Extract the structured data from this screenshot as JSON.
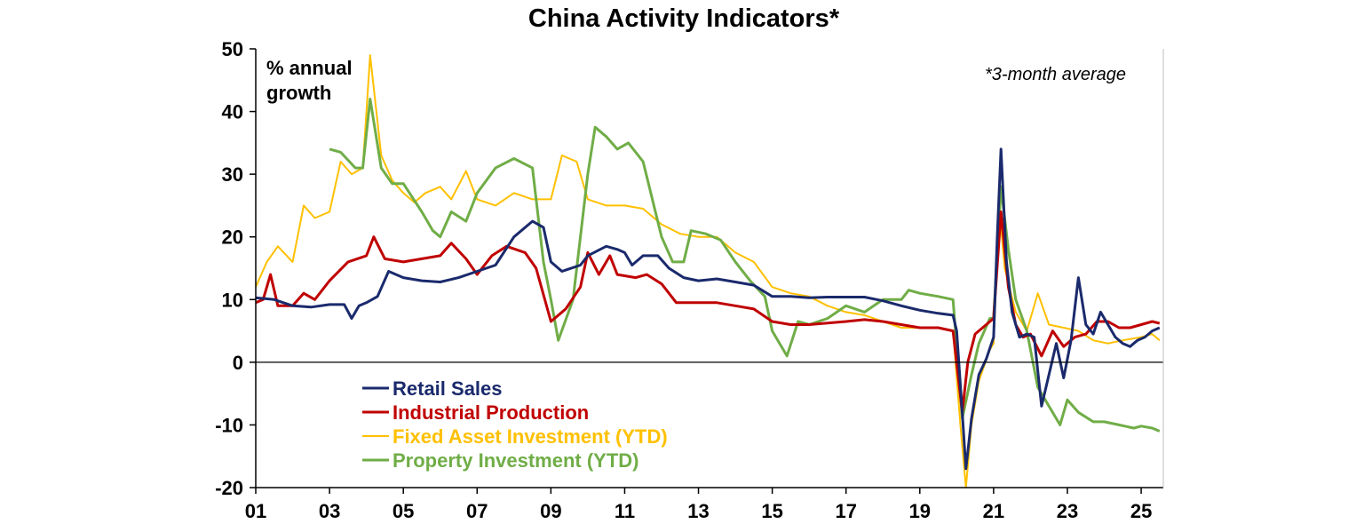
{
  "chart_data": {
    "type": "line",
    "title": "China Activity Indicators*",
    "ylabel": "% annual growth",
    "ylabel_lines": [
      "% annual",
      "growth"
    ],
    "annotation": "*3-month average",
    "xlim": [
      2001,
      2025.6
    ],
    "ylim": [
      -20,
      50
    ],
    "x_tick_labels": [
      "01",
      "03",
      "05",
      "07",
      "09",
      "11",
      "13",
      "15",
      "17",
      "19",
      "21",
      "23",
      "25"
    ],
    "x_tick_values": [
      2001,
      2003,
      2005,
      2007,
      2009,
      2011,
      2013,
      2015,
      2017,
      2019,
      2021,
      2023,
      2025
    ],
    "y_ticks": [
      -20,
      -10,
      0,
      10,
      20,
      30,
      40,
      50
    ],
    "grid": false,
    "legend_position": "bottom-left",
    "series": [
      {
        "name": "Retail Sales",
        "color": "#1a2a6c",
        "points": [
          [
            2001.0,
            10.3
          ],
          [
            2001.5,
            10.0
          ],
          [
            2002.0,
            9.0
          ],
          [
            2002.5,
            8.8
          ],
          [
            2003.0,
            9.2
          ],
          [
            2003.4,
            9.2
          ],
          [
            2003.6,
            7.0
          ],
          [
            2003.8,
            9.0
          ],
          [
            2004.0,
            9.5
          ],
          [
            2004.3,
            10.5
          ],
          [
            2004.6,
            14.5
          ],
          [
            2005.0,
            13.5
          ],
          [
            2005.5,
            13.0
          ],
          [
            2006.0,
            12.8
          ],
          [
            2006.5,
            13.5
          ],
          [
            2007.0,
            14.5
          ],
          [
            2007.5,
            15.5
          ],
          [
            2008.0,
            20.0
          ],
          [
            2008.5,
            22.5
          ],
          [
            2008.8,
            21.5
          ],
          [
            2009.0,
            16.0
          ],
          [
            2009.3,
            14.5
          ],
          [
            2009.8,
            15.5
          ],
          [
            2010.0,
            17.0
          ],
          [
            2010.5,
            18.5
          ],
          [
            2010.8,
            18.0
          ],
          [
            2011.0,
            17.5
          ],
          [
            2011.2,
            15.5
          ],
          [
            2011.5,
            17.0
          ],
          [
            2011.9,
            17.0
          ],
          [
            2012.2,
            15.0
          ],
          [
            2012.6,
            13.5
          ],
          [
            2013.0,
            13.0
          ],
          [
            2013.5,
            13.3
          ],
          [
            2014.0,
            12.8
          ],
          [
            2014.5,
            12.3
          ],
          [
            2015.0,
            10.5
          ],
          [
            2015.5,
            10.5
          ],
          [
            2016.0,
            10.3
          ],
          [
            2016.5,
            10.4
          ],
          [
            2017.0,
            10.4
          ],
          [
            2017.5,
            10.4
          ],
          [
            2018.0,
            9.8
          ],
          [
            2018.5,
            9.0
          ],
          [
            2019.0,
            8.3
          ],
          [
            2019.5,
            7.8
          ],
          [
            2019.9,
            7.5
          ],
          [
            2020.0,
            5.0
          ],
          [
            2020.15,
            -8.0
          ],
          [
            2020.25,
            -17.0
          ],
          [
            2020.4,
            -9.0
          ],
          [
            2020.6,
            -2.0
          ],
          [
            2020.8,
            0.5
          ],
          [
            2021.0,
            4.0
          ],
          [
            2021.1,
            20.0
          ],
          [
            2021.2,
            34.0
          ],
          [
            2021.35,
            16.0
          ],
          [
            2021.5,
            8.0
          ],
          [
            2021.7,
            4.0
          ],
          [
            2021.9,
            4.5
          ],
          [
            2022.1,
            4.0
          ],
          [
            2022.3,
            -7.0
          ],
          [
            2022.5,
            -2.0
          ],
          [
            2022.7,
            3.0
          ],
          [
            2022.9,
            -2.5
          ],
          [
            2023.1,
            3.5
          ],
          [
            2023.3,
            13.5
          ],
          [
            2023.5,
            6.0
          ],
          [
            2023.7,
            4.5
          ],
          [
            2023.9,
            8.0
          ],
          [
            2024.1,
            6.0
          ],
          [
            2024.3,
            4.0
          ],
          [
            2024.5,
            3.0
          ],
          [
            2024.7,
            2.5
          ],
          [
            2024.9,
            3.5
          ],
          [
            2025.1,
            4.0
          ],
          [
            2025.3,
            5.0
          ],
          [
            2025.5,
            5.5
          ]
        ]
      },
      {
        "name": "Industrial Production",
        "color": "#c00000",
        "points": [
          [
            2001.0,
            9.5
          ],
          [
            2001.2,
            10.0
          ],
          [
            2001.4,
            14.0
          ],
          [
            2001.6,
            9.0
          ],
          [
            2002.0,
            9.0
          ],
          [
            2002.3,
            11.0
          ],
          [
            2002.6,
            10.0
          ],
          [
            2003.0,
            13.0
          ],
          [
            2003.5,
            16.0
          ],
          [
            2004.0,
            17.0
          ],
          [
            2004.2,
            20.0
          ],
          [
            2004.5,
            16.5
          ],
          [
            2005.0,
            16.0
          ],
          [
            2005.5,
            16.5
          ],
          [
            2006.0,
            17.0
          ],
          [
            2006.3,
            19.0
          ],
          [
            2006.7,
            16.5
          ],
          [
            2007.0,
            14.0
          ],
          [
            2007.4,
            17.0
          ],
          [
            2007.8,
            18.5
          ],
          [
            2008.3,
            17.5
          ],
          [
            2008.6,
            15.0
          ],
          [
            2009.0,
            6.5
          ],
          [
            2009.4,
            8.5
          ],
          [
            2009.8,
            12.0
          ],
          [
            2010.0,
            17.5
          ],
          [
            2010.3,
            14.0
          ],
          [
            2010.6,
            17.0
          ],
          [
            2010.8,
            14.0
          ],
          [
            2011.3,
            13.5
          ],
          [
            2011.6,
            14.0
          ],
          [
            2012.0,
            12.5
          ],
          [
            2012.4,
            9.5
          ],
          [
            2013.0,
            9.5
          ],
          [
            2013.5,
            9.5
          ],
          [
            2014.0,
            9.0
          ],
          [
            2014.5,
            8.5
          ],
          [
            2015.0,
            6.5
          ],
          [
            2015.5,
            6.0
          ],
          [
            2016.0,
            6.0
          ],
          [
            2017.0,
            6.5
          ],
          [
            2017.5,
            6.8
          ],
          [
            2018.0,
            6.5
          ],
          [
            2018.5,
            6.0
          ],
          [
            2019.0,
            5.5
          ],
          [
            2019.5,
            5.5
          ],
          [
            2019.9,
            5.0
          ],
          [
            2020.15,
            -8.0
          ],
          [
            2020.3,
            0.0
          ],
          [
            2020.5,
            4.5
          ],
          [
            2020.8,
            6.0
          ],
          [
            2021.0,
            7.0
          ],
          [
            2021.2,
            24.0
          ],
          [
            2021.4,
            12.0
          ],
          [
            2021.6,
            6.0
          ],
          [
            2021.8,
            4.0
          ],
          [
            2022.0,
            4.5
          ],
          [
            2022.3,
            1.0
          ],
          [
            2022.6,
            5.0
          ],
          [
            2022.9,
            2.5
          ],
          [
            2023.2,
            4.0
          ],
          [
            2023.5,
            4.5
          ],
          [
            2023.8,
            6.5
          ],
          [
            2024.1,
            6.5
          ],
          [
            2024.4,
            5.5
          ],
          [
            2024.7,
            5.5
          ],
          [
            2025.0,
            6.0
          ],
          [
            2025.3,
            6.5
          ],
          [
            2025.5,
            6.2
          ]
        ]
      },
      {
        "name": "Fixed Asset Investment (YTD)",
        "color": "#ffc000",
        "points": [
          [
            2001.0,
            12.0
          ],
          [
            2001.3,
            16.0
          ],
          [
            2001.6,
            18.5
          ],
          [
            2002.0,
            16.0
          ],
          [
            2002.3,
            25.0
          ],
          [
            2002.6,
            23.0
          ],
          [
            2003.0,
            24.0
          ],
          [
            2003.3,
            32.0
          ],
          [
            2003.6,
            30.0
          ],
          [
            2003.9,
            31.0
          ],
          [
            2004.1,
            49.0
          ],
          [
            2004.4,
            33.0
          ],
          [
            2004.7,
            29.0
          ],
          [
            2005.0,
            27.0
          ],
          [
            2005.3,
            25.5
          ],
          [
            2005.6,
            27.0
          ],
          [
            2006.0,
            28.0
          ],
          [
            2006.3,
            26.0
          ],
          [
            2006.7,
            30.5
          ],
          [
            2007.0,
            26.0
          ],
          [
            2007.5,
            25.0
          ],
          [
            2008.0,
            27.0
          ],
          [
            2008.5,
            26.0
          ],
          [
            2009.0,
            26.0
          ],
          [
            2009.3,
            33.0
          ],
          [
            2009.7,
            32.0
          ],
          [
            2010.0,
            26.0
          ],
          [
            2010.5,
            25.0
          ],
          [
            2011.0,
            25.0
          ],
          [
            2011.5,
            24.5
          ],
          [
            2012.0,
            22.0
          ],
          [
            2012.5,
            20.5
          ],
          [
            2013.0,
            20.0
          ],
          [
            2013.5,
            20.0
          ],
          [
            2014.0,
            17.5
          ],
          [
            2014.5,
            16.0
          ],
          [
            2015.0,
            12.0
          ],
          [
            2015.5,
            11.0
          ],
          [
            2016.0,
            10.5
          ],
          [
            2016.5,
            9.0
          ],
          [
            2017.0,
            8.0
          ],
          [
            2017.5,
            7.5
          ],
          [
            2018.0,
            6.5
          ],
          [
            2018.5,
            5.5
          ],
          [
            2019.0,
            5.5
          ],
          [
            2019.5,
            5.5
          ],
          [
            2019.9,
            5.0
          ],
          [
            2020.1,
            -10.0
          ],
          [
            2020.25,
            -20.0
          ],
          [
            2020.4,
            -10.0
          ],
          [
            2020.6,
            -3.0
          ],
          [
            2020.9,
            2.0
          ],
          [
            2021.0,
            3.0
          ],
          [
            2021.15,
            25.0
          ],
          [
            2021.3,
            15.0
          ],
          [
            2021.6,
            8.0
          ],
          [
            2021.9,
            5.0
          ],
          [
            2022.2,
            11.0
          ],
          [
            2022.5,
            6.0
          ],
          [
            2022.9,
            5.5
          ],
          [
            2023.3,
            5.0
          ],
          [
            2023.7,
            3.5
          ],
          [
            2024.1,
            3.0
          ],
          [
            2024.5,
            3.5
          ],
          [
            2025.0,
            4.0
          ],
          [
            2025.3,
            4.5
          ],
          [
            2025.5,
            3.5
          ]
        ]
      },
      {
        "name": "Property Investment (YTD)",
        "color": "#70ad47",
        "points": [
          [
            2003.0,
            34.0
          ],
          [
            2003.3,
            33.5
          ],
          [
            2003.7,
            31.0
          ],
          [
            2003.9,
            31.0
          ],
          [
            2004.1,
            42.0
          ],
          [
            2004.4,
            31.0
          ],
          [
            2004.7,
            28.5
          ],
          [
            2005.0,
            28.5
          ],
          [
            2005.5,
            24.0
          ],
          [
            2005.8,
            21.0
          ],
          [
            2006.0,
            20.0
          ],
          [
            2006.3,
            24.0
          ],
          [
            2006.7,
            22.5
          ],
          [
            2007.0,
            27.0
          ],
          [
            2007.5,
            31.0
          ],
          [
            2008.0,
            32.5
          ],
          [
            2008.5,
            31.0
          ],
          [
            2008.8,
            16.0
          ],
          [
            2009.0,
            10.0
          ],
          [
            2009.2,
            3.5
          ],
          [
            2009.6,
            10.0
          ],
          [
            2010.0,
            30.0
          ],
          [
            2010.2,
            37.5
          ],
          [
            2010.5,
            36.0
          ],
          [
            2010.8,
            34.0
          ],
          [
            2011.1,
            35.0
          ],
          [
            2011.5,
            32.0
          ],
          [
            2012.0,
            20.0
          ],
          [
            2012.3,
            16.0
          ],
          [
            2012.6,
            16.0
          ],
          [
            2012.8,
            21.0
          ],
          [
            2013.2,
            20.5
          ],
          [
            2013.6,
            19.5
          ],
          [
            2014.0,
            16.0
          ],
          [
            2014.4,
            13.0
          ],
          [
            2014.8,
            10.5
          ],
          [
            2015.0,
            5.0
          ],
          [
            2015.4,
            1.0
          ],
          [
            2015.7,
            6.5
          ],
          [
            2016.0,
            6.0
          ],
          [
            2016.5,
            7.0
          ],
          [
            2017.0,
            9.0
          ],
          [
            2017.5,
            8.0
          ],
          [
            2018.0,
            10.0
          ],
          [
            2018.5,
            10.0
          ],
          [
            2018.7,
            11.5
          ],
          [
            2019.0,
            11.0
          ],
          [
            2019.5,
            10.5
          ],
          [
            2019.9,
            10.0
          ],
          [
            2020.15,
            -9.0
          ],
          [
            2020.4,
            -2.0
          ],
          [
            2020.6,
            3.0
          ],
          [
            2020.9,
            7.0
          ],
          [
            2021.0,
            7.0
          ],
          [
            2021.2,
            28.0
          ],
          [
            2021.4,
            18.0
          ],
          [
            2021.6,
            10.0
          ],
          [
            2021.9,
            5.0
          ],
          [
            2022.2,
            -4.0
          ],
          [
            2022.5,
            -7.0
          ],
          [
            2022.8,
            -10.0
          ],
          [
            2023.0,
            -6.0
          ],
          [
            2023.3,
            -8.0
          ],
          [
            2023.7,
            -9.5
          ],
          [
            2024.0,
            -9.5
          ],
          [
            2024.4,
            -10.0
          ],
          [
            2024.8,
            -10.5
          ],
          [
            2025.0,
            -10.2
          ],
          [
            2025.3,
            -10.5
          ],
          [
            2025.5,
            -11.0
          ]
        ]
      }
    ]
  }
}
